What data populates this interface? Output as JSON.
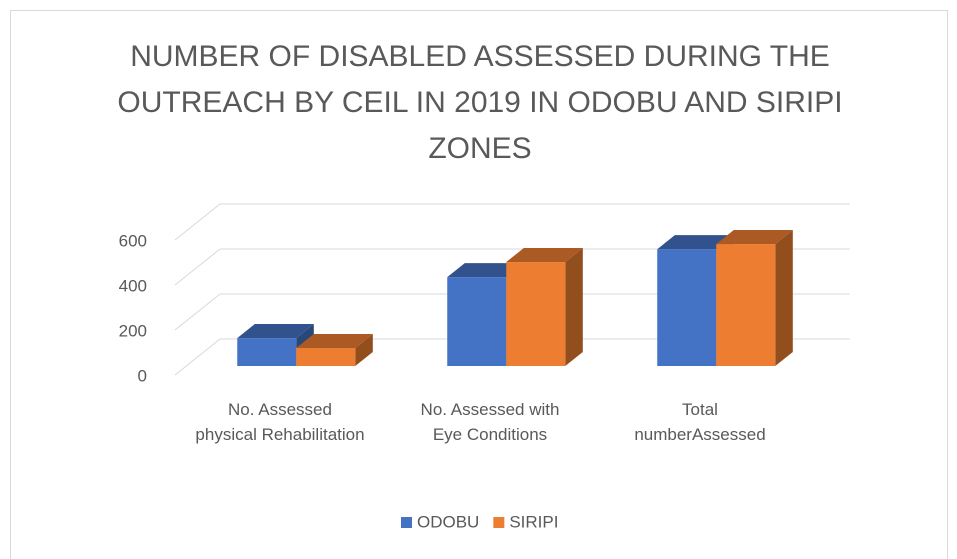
{
  "chart_data": {
    "type": "bar3d",
    "title": "NUMBER OF DISABLED ASSESSED DURING THE OUTREACH BY CEIL IN 2019 IN ODOBU AND SIRIPI ZONES",
    "categories": [
      "No. Assessed physical Rehabilitation",
      "No. Assessed with Eye Conditions",
      "Total numberAssessed"
    ],
    "series": [
      {
        "name": "ODOBU",
        "color": "#4472c4",
        "values": [
          124,
          395,
          519
        ]
      },
      {
        "name": "SIRIPI",
        "color": "#ed7d31",
        "values": [
          80,
          462,
          542
        ]
      }
    ],
    "ylim": [
      0,
      600
    ],
    "yticks": [
      0,
      200,
      400,
      600
    ],
    "grid": true,
    "legend": "bottom"
  }
}
